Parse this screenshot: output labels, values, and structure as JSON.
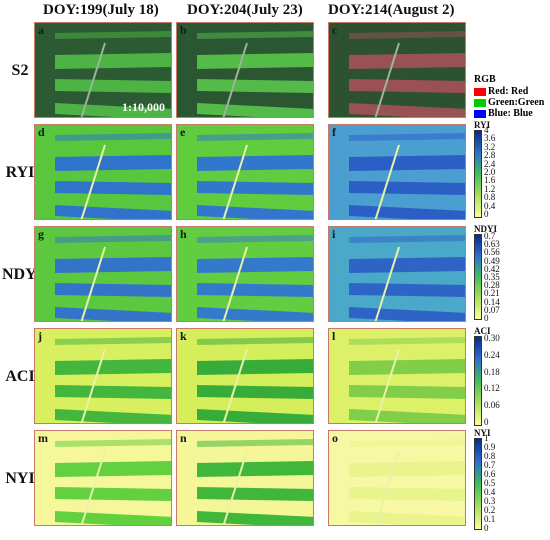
{
  "columns": [
    "DOY:199(July 18)",
    "DOY:204(July 23)",
    "DOY:214(August 2)"
  ],
  "rows": [
    {
      "label": "S2",
      "panels": [
        "a",
        "b",
        "c"
      ]
    },
    {
      "label": "RYI",
      "panels": [
        "d",
        "e",
        "f"
      ]
    },
    {
      "label": "NDYI",
      "panels": [
        "g",
        "h",
        "i"
      ]
    },
    {
      "label": "ACI",
      "panels": [
        "j",
        "k",
        "l"
      ]
    },
    {
      "label": "NYI",
      "panels": [
        "m",
        "n",
        "o"
      ]
    }
  ],
  "scale_text": "1:10,000",
  "rgb_legend": {
    "title": "RGB",
    "items": [
      {
        "label": "Red: Red",
        "color": "#ff0000"
      },
      {
        "label": "Green:Green",
        "color": "#00cc00"
      },
      {
        "label": "Blue: Blue",
        "color": "#0000ff"
      }
    ]
  },
  "colorbars": {
    "ryi": {
      "title": "RYI",
      "ticks": [
        "4",
        "3.6",
        "3.2",
        "2.8",
        "2.4",
        "2.0",
        "1.6",
        "1.2",
        "0.8",
        "0.4",
        "0"
      ]
    },
    "ndyi": {
      "title": "NDYI",
      "ticks": [
        "0.7",
        "0.63",
        "0.56",
        "0.49",
        "0.42",
        "0.35",
        "0.28",
        "0.21",
        "0.14",
        "0.07",
        "0"
      ]
    },
    "aci": {
      "title": "ACI",
      "ticks": [
        "0.30",
        "0.24",
        "0.18",
        "0.12",
        "0.06",
        "0"
      ]
    },
    "nyi": {
      "title": "NYI",
      "ticks": [
        "1",
        "0.9",
        "0.8",
        "0.7",
        "0.6",
        "0.5",
        "0.4",
        "0.3",
        "0.2",
        "0.1",
        "0"
      ]
    }
  },
  "colors": {
    "s2_dark": "#23472a",
    "s2_field": "#3f9a3a",
    "s2_red": "#9a4a4a",
    "index_high": "#1a3fa8",
    "index_low": "#ffff99",
    "index_mid": "#43c43a"
  }
}
